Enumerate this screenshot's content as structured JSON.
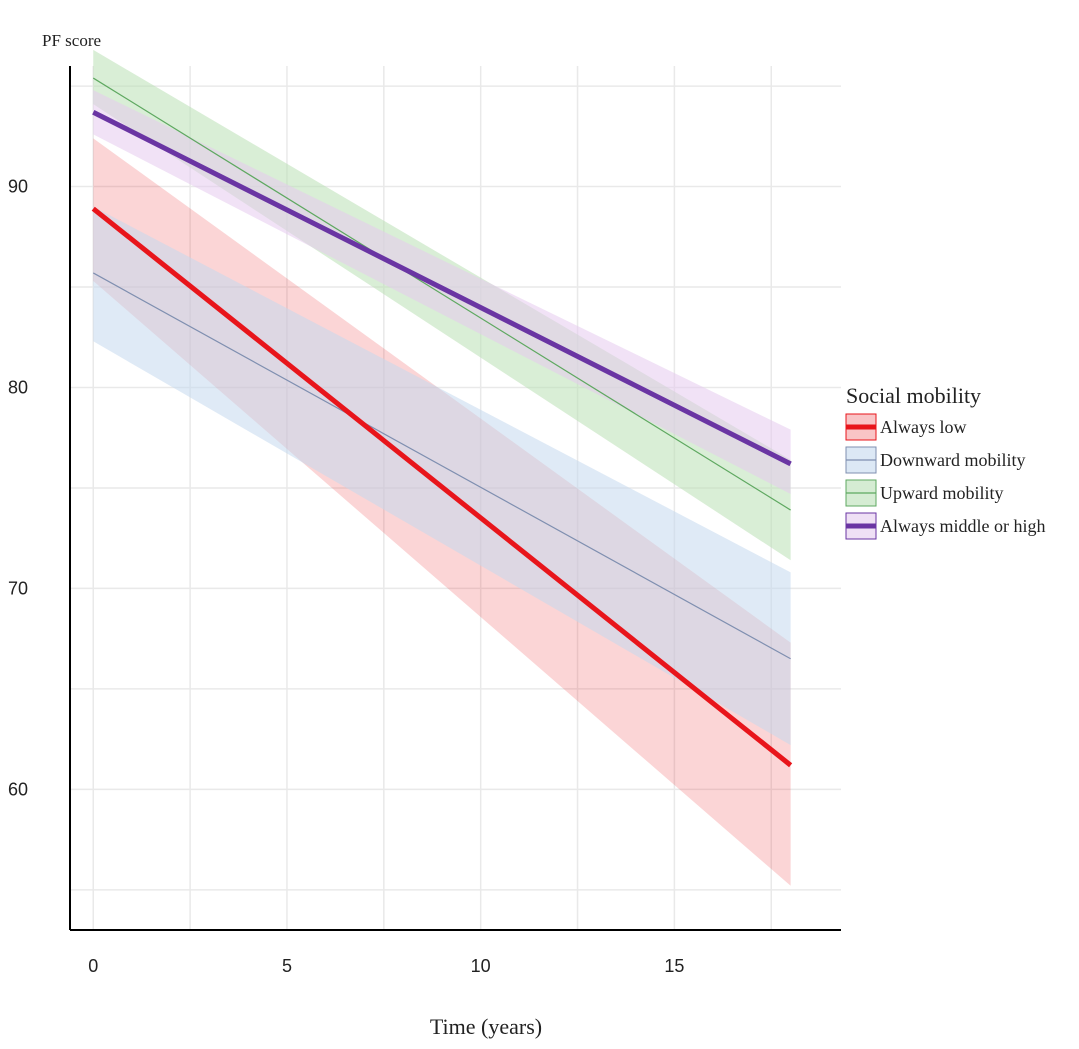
{
  "chart_data": {
    "type": "line",
    "title": "",
    "ylabel": "PF score",
    "xlabel": "Time (years)",
    "xlim": [
      -0.6,
      19.3
    ],
    "ylim": [
      53,
      96
    ],
    "x_ticks": [
      0,
      5,
      10,
      15
    ],
    "y_ticks": [
      60,
      70,
      80,
      90
    ],
    "x_grid": [
      0,
      2.5,
      5,
      7.5,
      10,
      12.5,
      15,
      17.5
    ],
    "y_grid": [
      55,
      60,
      65,
      70,
      75,
      80,
      85,
      90,
      95
    ],
    "grid": true,
    "legend": {
      "title": "Social mobility",
      "position": "right"
    },
    "series": [
      {
        "name": "Always low",
        "color": "#e8151b",
        "line_width": 5,
        "x": [
          0,
          18
        ],
        "values": [
          88.9,
          61.2
        ],
        "ci_lower": [
          85.3,
          55.2
        ],
        "ci_upper": [
          92.4,
          67.3
        ]
      },
      {
        "name": "Downward mobility",
        "color": "#7f8fb0",
        "band_color": "#c5d9ee",
        "line_width": 1.2,
        "x": [
          0,
          18
        ],
        "values": [
          85.7,
          66.5
        ],
        "ci_lower": [
          82.3,
          62.2
        ],
        "ci_upper": [
          89.0,
          70.8
        ]
      },
      {
        "name": "Upward mobility",
        "color": "#5ea860",
        "band_color": "#b9e0b5",
        "line_width": 1.2,
        "x": [
          0,
          18
        ],
        "values": [
          95.4,
          73.9
        ],
        "ci_lower": [
          94.1,
          71.4
        ],
        "ci_upper": [
          96.8,
          76.4
        ]
      },
      {
        "name": "Always middle or high",
        "color": "#6a35a3",
        "band_color": "#e5cbee",
        "line_width": 5,
        "x": [
          0,
          18
        ],
        "values": [
          93.7,
          76.2
        ],
        "ci_lower": [
          92.6,
          74.7
        ],
        "ci_upper": [
          94.8,
          77.9
        ]
      }
    ]
  }
}
